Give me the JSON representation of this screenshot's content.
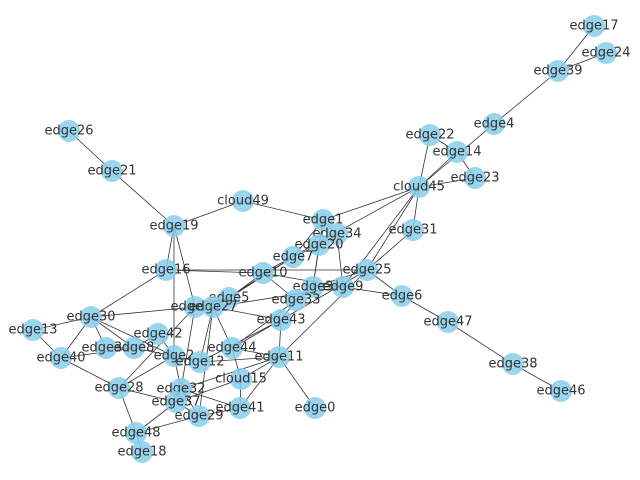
{
  "colors": {
    "node_fill": "#87ceeb",
    "edge_stroke": "#333333",
    "label": "#333333",
    "background": "#ffffff"
  },
  "nodes": [
    {
      "id": "edge17",
      "label": "edge17"
    },
    {
      "id": "edge24",
      "label": "edge24"
    },
    {
      "id": "edge39",
      "label": "edge39"
    },
    {
      "id": "edge4",
      "label": "edge4"
    },
    {
      "id": "edge26",
      "label": "edge26"
    },
    {
      "id": "edge22",
      "label": "edge22"
    },
    {
      "id": "edge14",
      "label": "edge14"
    },
    {
      "id": "edge21",
      "label": "edge21"
    },
    {
      "id": "edge23",
      "label": "edge23"
    },
    {
      "id": "cloud45",
      "label": "cloud45"
    },
    {
      "id": "cloud49",
      "label": "cloud49"
    },
    {
      "id": "edge19",
      "label": "edge19"
    },
    {
      "id": "edge1",
      "label": "edge1"
    },
    {
      "id": "edge34",
      "label": "edge34"
    },
    {
      "id": "edge31",
      "label": "edge31"
    },
    {
      "id": "edge20",
      "label": "edge20"
    },
    {
      "id": "edge7",
      "label": "edge7"
    },
    {
      "id": "edge16",
      "label": "edge16"
    },
    {
      "id": "edge10",
      "label": "edge10"
    },
    {
      "id": "edge25",
      "label": "edge25"
    },
    {
      "id": "edge3",
      "label": "edge3"
    },
    {
      "id": "edge9",
      "label": "edge9"
    },
    {
      "id": "edge6",
      "label": "edge6"
    },
    {
      "id": "edge5",
      "label": "edge5"
    },
    {
      "id": "edge33",
      "label": "edge33"
    },
    {
      "id": "edge35",
      "label": "edge35"
    },
    {
      "id": "edge27",
      "label": "edge27"
    },
    {
      "id": "edge30",
      "label": "edge30"
    },
    {
      "id": "edge43",
      "label": "edge43"
    },
    {
      "id": "edge47",
      "label": "edge47"
    },
    {
      "id": "edge13",
      "label": "edge13"
    },
    {
      "id": "edge42",
      "label": "edge42"
    },
    {
      "id": "edge36",
      "label": "edge36"
    },
    {
      "id": "edge8",
      "label": "edge8"
    },
    {
      "id": "edge44",
      "label": "edge44"
    },
    {
      "id": "edge40",
      "label": "edge40"
    },
    {
      "id": "edge2",
      "label": "edge2"
    },
    {
      "id": "edge12",
      "label": "edge12"
    },
    {
      "id": "edge11",
      "label": "edge11"
    },
    {
      "id": "edge38",
      "label": "edge38"
    },
    {
      "id": "cloud15",
      "label": "cloud15"
    },
    {
      "id": "edge28",
      "label": "edge28"
    },
    {
      "id": "edge32",
      "label": "edge32"
    },
    {
      "id": "edge46",
      "label": "edge46"
    },
    {
      "id": "edge37",
      "label": "edge37"
    },
    {
      "id": "edge41",
      "label": "edge41"
    },
    {
      "id": "edge0",
      "label": "edge0"
    },
    {
      "id": "edge29",
      "label": "edge29"
    },
    {
      "id": "edge48",
      "label": "edge48"
    },
    {
      "id": "edge18",
      "label": "edge18"
    }
  ],
  "edges": [
    [
      "edge17",
      "edge39"
    ],
    [
      "edge24",
      "edge39"
    ],
    [
      "edge39",
      "edge4"
    ],
    [
      "edge4",
      "cloud45"
    ],
    [
      "edge26",
      "edge21"
    ],
    [
      "edge21",
      "edge19"
    ],
    [
      "edge22",
      "cloud45"
    ],
    [
      "edge14",
      "cloud45"
    ],
    [
      "edge23",
      "cloud45"
    ],
    [
      "edge22",
      "edge14"
    ],
    [
      "edge14",
      "edge23"
    ],
    [
      "cloud45",
      "edge1"
    ],
    [
      "cloud45",
      "edge31"
    ],
    [
      "cloud45",
      "edge25"
    ],
    [
      "cloud45",
      "edge10"
    ],
    [
      "cloud45",
      "edge9"
    ],
    [
      "cloud49",
      "edge19"
    ],
    [
      "cloud49",
      "edge1"
    ],
    [
      "edge19",
      "edge16"
    ],
    [
      "edge19",
      "edge35"
    ],
    [
      "edge19",
      "edge2"
    ],
    [
      "edge1",
      "edge34"
    ],
    [
      "edge1",
      "edge7"
    ],
    [
      "edge1",
      "edge3"
    ],
    [
      "edge34",
      "edge20"
    ],
    [
      "edge34",
      "edge9"
    ],
    [
      "edge31",
      "edge25"
    ],
    [
      "edge20",
      "edge7"
    ],
    [
      "edge20",
      "edge3"
    ],
    [
      "edge7",
      "edge5"
    ],
    [
      "edge7",
      "edge27"
    ],
    [
      "edge16",
      "edge10"
    ],
    [
      "edge16",
      "edge30"
    ],
    [
      "edge16",
      "edge25"
    ],
    [
      "edge10",
      "edge5"
    ],
    [
      "edge10",
      "edge33"
    ],
    [
      "edge10",
      "edge9"
    ],
    [
      "edge25",
      "edge6"
    ],
    [
      "edge25",
      "edge3"
    ],
    [
      "edge25",
      "edge43"
    ],
    [
      "edge25",
      "edge11"
    ],
    [
      "edge3",
      "edge9"
    ],
    [
      "edge3",
      "edge33"
    ],
    [
      "edge9",
      "edge6"
    ],
    [
      "edge9",
      "edge27"
    ],
    [
      "edge6",
      "edge47"
    ],
    [
      "edge47",
      "edge38"
    ],
    [
      "edge38",
      "edge46"
    ],
    [
      "edge5",
      "edge35"
    ],
    [
      "edge5",
      "edge27"
    ],
    [
      "edge33",
      "edge43"
    ],
    [
      "edge33",
      "edge44"
    ],
    [
      "edge35",
      "edge30"
    ],
    [
      "edge35",
      "edge32"
    ],
    [
      "edge35",
      "edge28"
    ],
    [
      "edge27",
      "edge12"
    ],
    [
      "edge27",
      "edge43"
    ],
    [
      "edge27",
      "edge29"
    ],
    [
      "edge30",
      "edge13"
    ],
    [
      "edge30",
      "edge40"
    ],
    [
      "edge30",
      "edge36"
    ],
    [
      "edge30",
      "edge8"
    ],
    [
      "edge30",
      "edge2"
    ],
    [
      "edge13",
      "edge40"
    ],
    [
      "edge40",
      "edge8"
    ],
    [
      "edge40",
      "edge28"
    ],
    [
      "edge42",
      "edge8"
    ],
    [
      "edge42",
      "edge2"
    ],
    [
      "edge36",
      "edge8"
    ],
    [
      "edge8",
      "edge2"
    ],
    [
      "edge43",
      "edge44"
    ],
    [
      "edge43",
      "edge11"
    ],
    [
      "edge43",
      "edge12"
    ],
    [
      "edge44",
      "edge11"
    ],
    [
      "edge44",
      "cloud15"
    ],
    [
      "edge44",
      "edge27"
    ],
    [
      "edge2",
      "edge12"
    ],
    [
      "edge2",
      "edge32"
    ],
    [
      "edge2",
      "edge28"
    ],
    [
      "edge12",
      "edge11"
    ],
    [
      "edge11",
      "edge0"
    ],
    [
      "edge11",
      "cloud15"
    ],
    [
      "edge11",
      "edge41"
    ],
    [
      "edge11",
      "edge32"
    ],
    [
      "cloud15",
      "edge37"
    ],
    [
      "cloud15",
      "edge41"
    ],
    [
      "edge32",
      "edge37"
    ],
    [
      "edge32",
      "edge29"
    ],
    [
      "edge32",
      "edge41"
    ],
    [
      "edge28",
      "edge48"
    ],
    [
      "edge28",
      "edge37"
    ],
    [
      "edge37",
      "edge29"
    ],
    [
      "edge37",
      "edge48"
    ],
    [
      "edge29",
      "edge48"
    ],
    [
      "edge48",
      "edge18"
    ],
    [
      "edge29",
      "edge41"
    ]
  ]
}
